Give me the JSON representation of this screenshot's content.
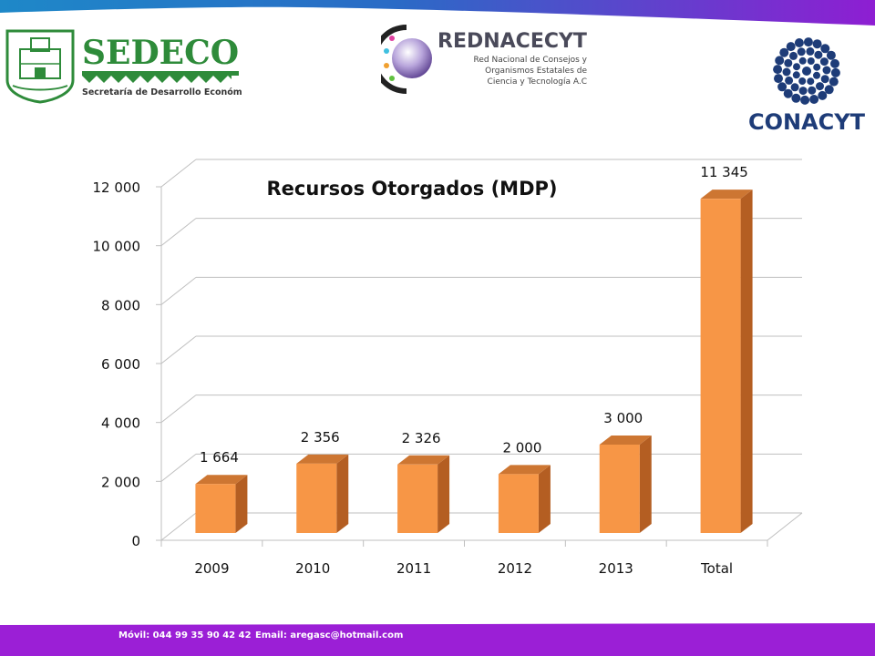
{
  "logos": {
    "sedeco": {
      "name": "SEDECO",
      "subtitle": "Secretaría de Desarrollo Económico"
    },
    "rednacecyt": {
      "name": "REDNACECYT",
      "line1": "Red Nacional de Consejos y",
      "line2": "Organismos Estatales de",
      "line3": "Ciencia y Tecnología A.C"
    },
    "conacyt": {
      "name": "CONACYT"
    }
  },
  "footer": {
    "phone": "Móvil: 044 99 35 90 42 42",
    "email": "Email: aregasc@hotmail.com"
  },
  "colors": {
    "bar_front": "#F79646",
    "bar_side": "#B45E22",
    "bar_top": "#CD7632",
    "grid": "#BFBFBF",
    "top_bar_blue": "#1E88C8",
    "top_bar_purple": "#8E1ED2",
    "bottom_bar_purple": "#9B1FD6",
    "sedeco_green": "#2E8B3A",
    "conacyt_navy": "#1E3C78"
  },
  "chart_data": {
    "type": "bar",
    "title": "Recursos Otorgados (MDP)",
    "categories": [
      "2009",
      "2010",
      "2011",
      "2012",
      "2013",
      "Total"
    ],
    "values": [
      1664,
      2356,
      2326,
      2000,
      3000,
      11345
    ],
    "data_labels": [
      "1 664",
      "2 356",
      "2 326",
      "2 000",
      "3 000",
      "11 345"
    ],
    "y_ticks": [
      0,
      2000,
      4000,
      6000,
      8000,
      10000,
      12000
    ],
    "y_tick_labels": [
      "0",
      "2 000",
      "4 000",
      "6 000",
      "8 000",
      "10 000",
      "12 000"
    ],
    "ylim": [
      0,
      12000
    ],
    "grid": true,
    "legend": "none",
    "style": "3d"
  }
}
